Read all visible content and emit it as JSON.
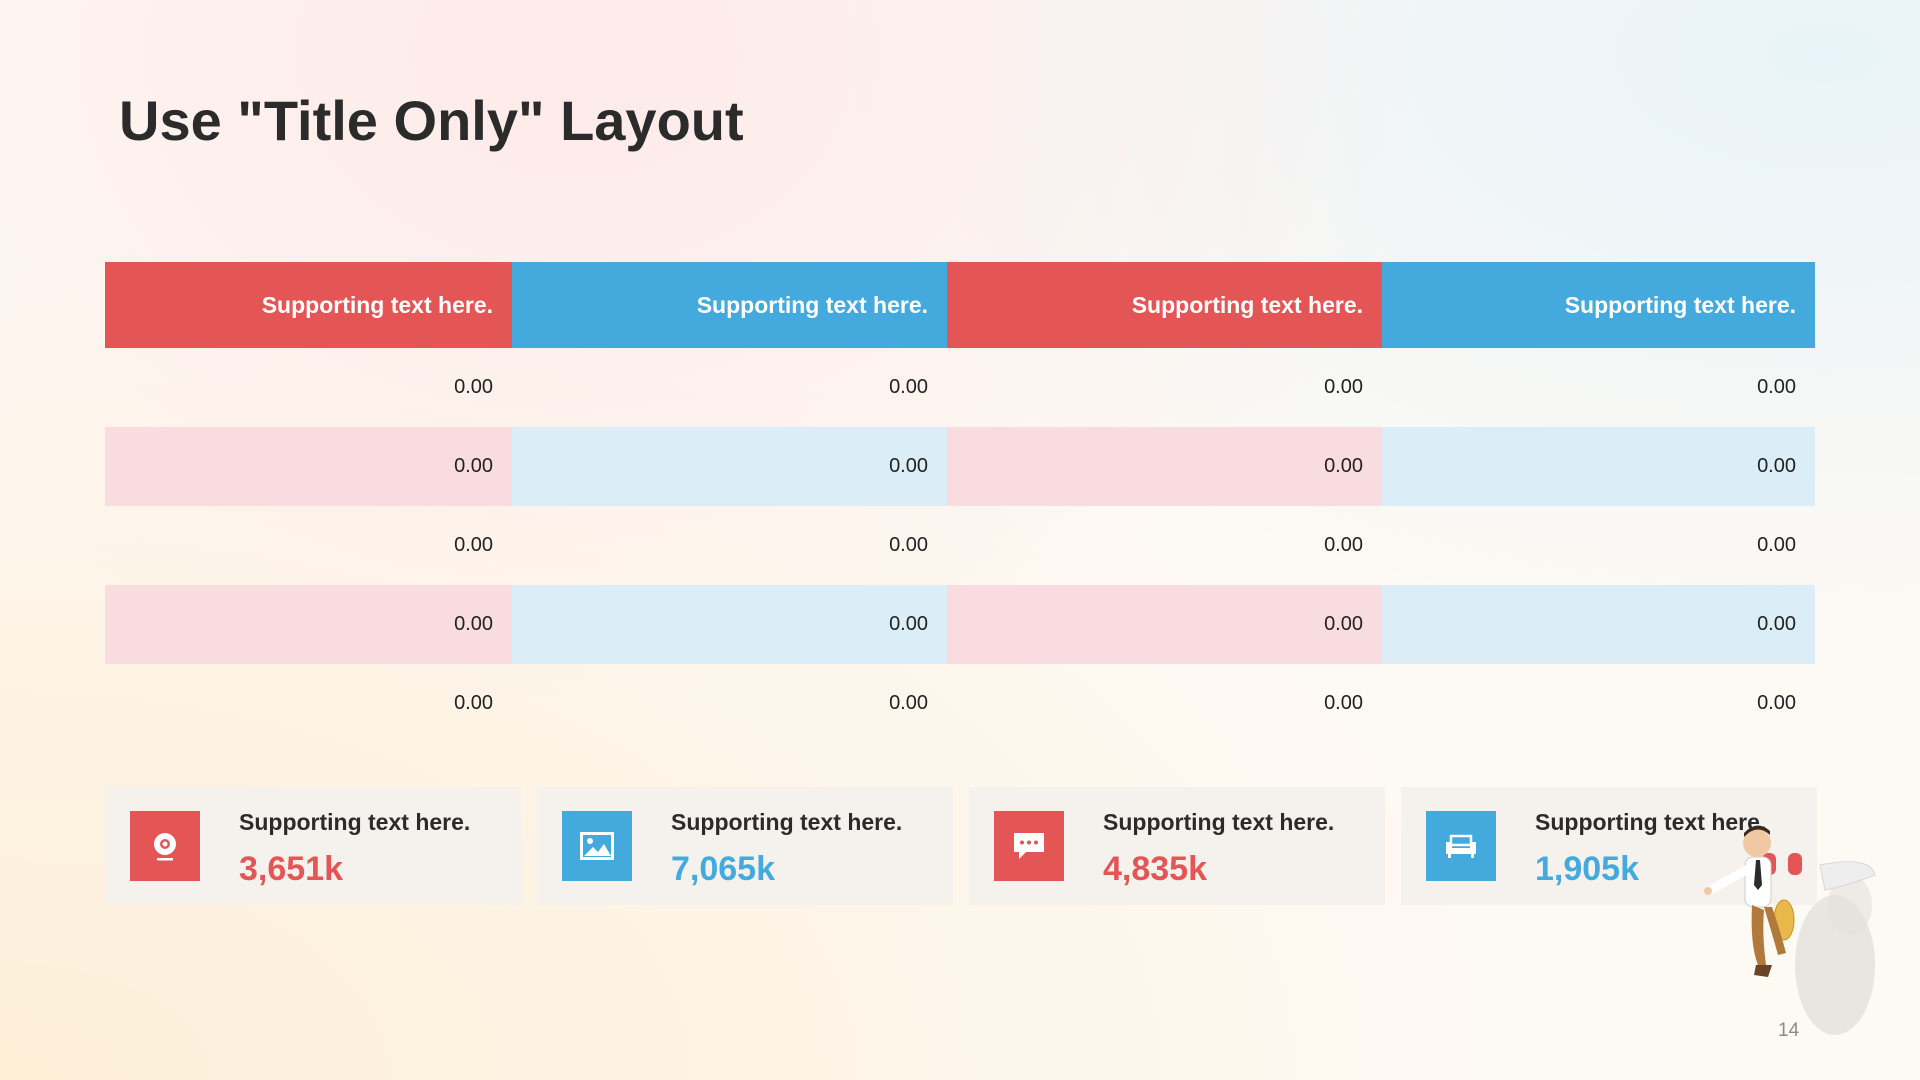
{
  "slide": {
    "title": "Use \"Title Only\" Layout",
    "page_number": "14"
  },
  "table": {
    "headers": [
      "Supporting text here.",
      "Supporting text here.",
      "Supporting text here.",
      "Supporting text here."
    ],
    "rows": [
      [
        "0.00",
        "0.00",
        "0.00",
        "0.00"
      ],
      [
        "0.00",
        "0.00",
        "0.00",
        "0.00"
      ],
      [
        "0.00",
        "0.00",
        "0.00",
        "0.00"
      ],
      [
        "0.00",
        "0.00",
        "0.00",
        "0.00"
      ],
      [
        "0.00",
        "0.00",
        "0.00",
        "0.00"
      ]
    ]
  },
  "cards": [
    {
      "label": "Supporting text here.",
      "value": "3,651k",
      "icon": "webcam-icon",
      "color": "#e45656"
    },
    {
      "label": "Supporting text here.",
      "value": "7,065k",
      "icon": "image-icon",
      "color": "#44a9dd"
    },
    {
      "label": "Supporting text here.",
      "value": "4,835k",
      "icon": "chat-bubble-icon",
      "color": "#e45656"
    },
    {
      "label": "Supporting text here.",
      "value": "1,905k",
      "icon": "sofa-icon",
      "color": "#44a9dd"
    }
  ],
  "colors": {
    "red": "#e45656",
    "blue": "#44a9dd",
    "red_tint": "#f8dcdf",
    "blue_tint": "#dbeef7"
  }
}
